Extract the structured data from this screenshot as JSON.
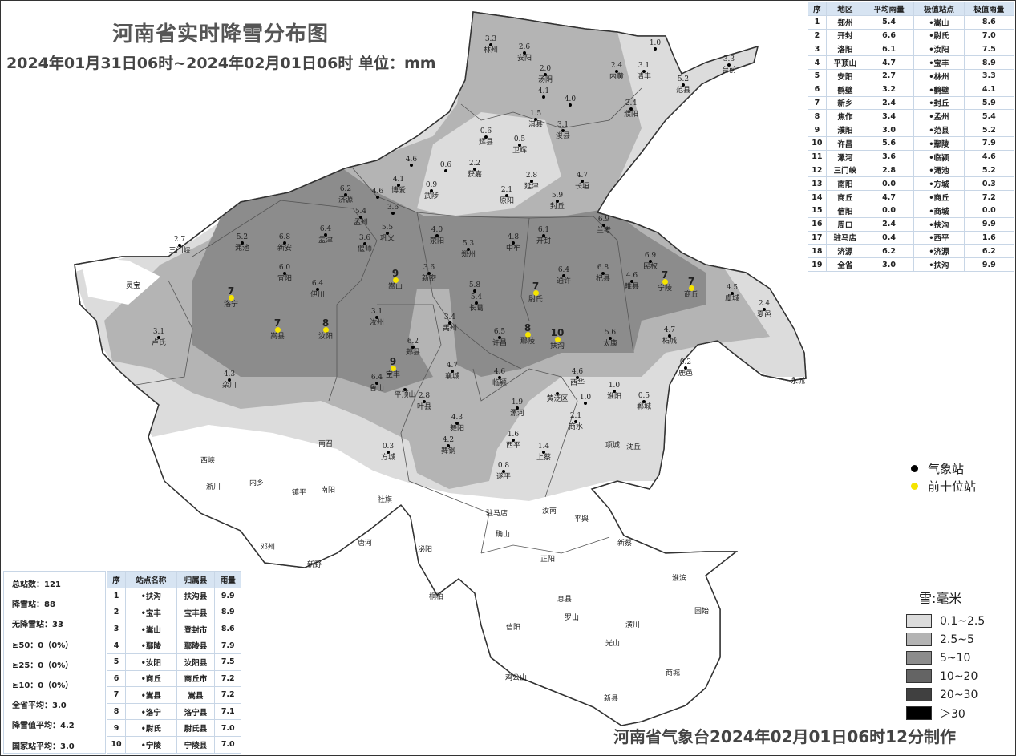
{
  "header": {
    "title": "河南省实时降雪分布图",
    "subtitle": "2024年01月31日06时~2024年02月01日06时 单位：mm"
  },
  "footer": "河南省气象台2024年02月01日06时12分制作",
  "region_table": {
    "headers": [
      "序",
      "地区",
      "平均雨量",
      "极值站点",
      "极值雨量"
    ],
    "rows": [
      [
        "1",
        "郑州",
        "5.4",
        "•嵩山",
        "8.6"
      ],
      [
        "2",
        "开封",
        "6.6",
        "•尉氏",
        "7.0"
      ],
      [
        "3",
        "洛阳",
        "6.1",
        "•汝阳",
        "7.5"
      ],
      [
        "4",
        "平顶山",
        "4.7",
        "•宝丰",
        "8.9"
      ],
      [
        "5",
        "安阳",
        "2.7",
        "•林州",
        "3.3"
      ],
      [
        "6",
        "鹤壁",
        "3.2",
        "•鹤壁",
        "4.1"
      ],
      [
        "7",
        "新乡",
        "2.4",
        "•封丘",
        "5.9"
      ],
      [
        "8",
        "焦作",
        "3.4",
        "•孟州",
        "5.4"
      ],
      [
        "9",
        "濮阳",
        "3.0",
        "•范县",
        "5.2"
      ],
      [
        "10",
        "许昌",
        "5.6",
        "•鄢陵",
        "7.9"
      ],
      [
        "11",
        "漯河",
        "3.6",
        "•临颍",
        "4.6"
      ],
      [
        "12",
        "三门峡",
        "2.8",
        "•渑池",
        "5.2"
      ],
      [
        "13",
        "南阳",
        "0.0",
        "•方城",
        "0.3"
      ],
      [
        "14",
        "商丘",
        "4.7",
        "•商丘",
        "7.2"
      ],
      [
        "15",
        "信阳",
        "0.0",
        "•商城",
        "0.0"
      ],
      [
        "16",
        "周口",
        "2.4",
        "•扶沟",
        "9.9"
      ],
      [
        "17",
        "驻马店",
        "0.4",
        "•西平",
        "1.6"
      ],
      [
        "18",
        "济源",
        "6.2",
        "•济源",
        "6.2"
      ],
      [
        "19",
        "全省",
        "3.0",
        "•扶沟",
        "9.9"
      ]
    ]
  },
  "stats": [
    "总站数：121",
    "降雪站：88",
    "无降雪站：33",
    "≥50：0（0%）",
    "≥25：0（0%）",
    "≥10：0（0%）",
    "全省平均：3.0",
    "降雪值平均：4.2",
    "国家站平均：3.0"
  ],
  "top_table": {
    "headers": [
      "序",
      "站点名称",
      "归属县",
      "雨量"
    ],
    "rows": [
      [
        "1",
        "•扶沟",
        "扶沟县",
        "9.9"
      ],
      [
        "2",
        "•宝丰",
        "宝丰县",
        "8.9"
      ],
      [
        "3",
        "•嵩山",
        "登封市",
        "8.6"
      ],
      [
        "4",
        "•鄢陵",
        "鄢陵县",
        "7.9"
      ],
      [
        "5",
        "•汝阳",
        "汝阳县",
        "7.5"
      ],
      [
        "6",
        "•商丘",
        "商丘市",
        "7.2"
      ],
      [
        "7",
        "•嵩县",
        "嵩县",
        "7.2"
      ],
      [
        "8",
        "•洛宁",
        "洛宁县",
        "7.1"
      ],
      [
        "9",
        "•尉氏",
        "尉氏县",
        "7.0"
      ],
      [
        "10",
        "•宁陵",
        "宁陵县",
        "7.0"
      ]
    ]
  },
  "legend_points": [
    {
      "label": "气象站",
      "color": "#000000"
    },
    {
      "label": "前十位站",
      "color": "#f5e400"
    }
  ],
  "legend_snow": {
    "title": "雪:毫米",
    "items": [
      {
        "label": "0.1~2.5",
        "color": "#dcdcdc"
      },
      {
        "label": "2.5~5",
        "color": "#b4b4b4"
      },
      {
        "label": "5~10",
        "color": "#8c8c8c"
      },
      {
        "label": "10~20",
        "color": "#646464"
      },
      {
        "label": "20~30",
        "color": "#404040"
      },
      {
        "label": "＞30",
        "color": "#000000"
      }
    ]
  },
  "stations": [
    {
      "n": "林州",
      "v": "3.3"
    },
    {
      "n": "安阳",
      "v": "2.6"
    },
    {
      "n": "汤阴",
      "v": "2.0"
    },
    {
      "n": "内黄",
      "v": "2.4"
    },
    {
      "n": "清丰",
      "v": "3.1"
    },
    {
      "n": "",
      "v": "1.0"
    },
    {
      "n": "台前",
      "v": "3.3"
    },
    {
      "n": "范县",
      "v": "5.2"
    },
    {
      "n": "",
      "v": "4.1"
    },
    {
      "n": "淇县",
      "v": "1.5"
    },
    {
      "n": "",
      "v": "4.0"
    },
    {
      "n": "浚县",
      "v": "3.1"
    },
    {
      "n": "濮阳",
      "v": "2.4"
    },
    {
      "n": "辉县",
      "v": "0.6"
    },
    {
      "n": "卫辉",
      "v": "0.5"
    },
    {
      "n": "获嘉",
      "v": "2.2"
    },
    {
      "n": "延津",
      "v": "2.8"
    },
    {
      "n": "长垣",
      "v": "4.7"
    },
    {
      "n": "原阳",
      "v": "2.1"
    },
    {
      "n": "封丘",
      "v": "5.9"
    },
    {
      "n": "武陟",
      "v": "0.9"
    },
    {
      "n": "博爱",
      "v": "4.1"
    },
    {
      "n": "",
      "v": "4.6"
    },
    {
      "n": "",
      "v": "0.6"
    },
    {
      "n": "济源",
      "v": "6.2"
    },
    {
      "n": "",
      "v": "4.6"
    },
    {
      "n": "",
      "v": "3.6"
    },
    {
      "n": "孟州",
      "v": "5.4"
    },
    {
      "n": "巩义",
      "v": "5.5"
    },
    {
      "n": "偃师",
      "v": "3.6"
    },
    {
      "n": "孟津",
      "v": "6.4"
    },
    {
      "n": "新安",
      "v": "6.8"
    },
    {
      "n": "渑池",
      "v": "5.2"
    },
    {
      "n": "三门峡",
      "v": "2.7"
    },
    {
      "n": "宜阳",
      "v": "6.0"
    },
    {
      "n": "伊川",
      "v": "6.4"
    },
    {
      "n": "荥阳",
      "v": "4.0"
    },
    {
      "n": "郑州",
      "v": "5.3"
    },
    {
      "n": "中牟",
      "v": "4.8"
    },
    {
      "n": "开封",
      "v": "6.1"
    },
    {
      "n": "兰考",
      "v": "6.9"
    },
    {
      "n": "新密",
      "v": "3.6"
    },
    {
      "n": "民权",
      "v": "6.9"
    },
    {
      "n": "睢县",
      "v": "4.6"
    },
    {
      "n": "通许",
      "v": "6.4"
    },
    {
      "n": "杞县",
      "v": "6.8"
    },
    {
      "n": "虞城",
      "v": "4.5"
    },
    {
      "n": "夏邑",
      "v": "2.4"
    },
    {
      "n": "卢氏",
      "v": "3.1"
    },
    {
      "n": "汝州",
      "v": "3.1"
    },
    {
      "n": "禹州",
      "v": "3.4"
    },
    {
      "n": "长葛",
      "v": "5.4"
    },
    {
      "n": "",
      "v": "5.8"
    },
    {
      "n": "许昌",
      "v": "6.5"
    },
    {
      "n": "太康",
      "v": "5.6"
    },
    {
      "n": "柘城",
      "v": "4.7"
    },
    {
      "n": "鹿邑",
      "v": "0.2"
    },
    {
      "n": "郏县",
      "v": "6.2"
    },
    {
      "n": "鲁山",
      "v": "6.4"
    },
    {
      "n": "平顶山",
      "v": ""
    },
    {
      "n": "襄城",
      "v": "4.7"
    },
    {
      "n": "临颍",
      "v": "4.6"
    },
    {
      "n": "西华",
      "v": "4.6"
    },
    {
      "n": "黄泛区",
      "v": ""
    },
    {
      "n": "郸城",
      "v": "0.5"
    },
    {
      "n": "淮阳",
      "v": "1.0"
    },
    {
      "n": "",
      "v": "1.0"
    },
    {
      "n": "栾川",
      "v": "4.3"
    },
    {
      "n": "叶县",
      "v": "2.8"
    },
    {
      "n": "舞阳",
      "v": "4.3"
    },
    {
      "n": "漯河",
      "v": "1.9"
    },
    {
      "n": "商水",
      "v": "2.1"
    },
    {
      "n": "方城",
      "v": "0.3"
    },
    {
      "n": "舞钢",
      "v": "4.2"
    },
    {
      "n": "西平",
      "v": "1.6"
    },
    {
      "n": "上蔡",
      "v": "1.4"
    },
    {
      "n": "遂平",
      "v": "0.8"
    }
  ],
  "top_stations": [
    {
      "n": "嵩山",
      "v": "9"
    },
    {
      "n": "洛宁",
      "v": "7"
    },
    {
      "n": "嵩县",
      "v": "7"
    },
    {
      "n": "汝阳",
      "v": "8"
    },
    {
      "n": "尉氏",
      "v": "7"
    },
    {
      "n": "宁陵",
      "v": "7"
    },
    {
      "n": "商丘",
      "v": "7"
    },
    {
      "n": "鄢陵",
      "v": "8"
    },
    {
      "n": "扶沟",
      "v": "10"
    },
    {
      "n": "宝丰",
      "v": "9"
    }
  ],
  "places": [
    "灵宝",
    "永城",
    "项城",
    "沈丘",
    "南召",
    "西峡",
    "淅川",
    "内乡",
    "镇平",
    "南阳",
    "社旗",
    "邓州",
    "唐河",
    "新野",
    "驻马店",
    "汝南",
    "平舆",
    "确山",
    "正阳",
    "新蔡",
    "泌阳",
    "桐柏",
    "淮滨",
    "息县",
    "罗山",
    "潢川",
    "固始",
    "信阳",
    "光山",
    "商城",
    "新县",
    "鸡公山"
  ]
}
